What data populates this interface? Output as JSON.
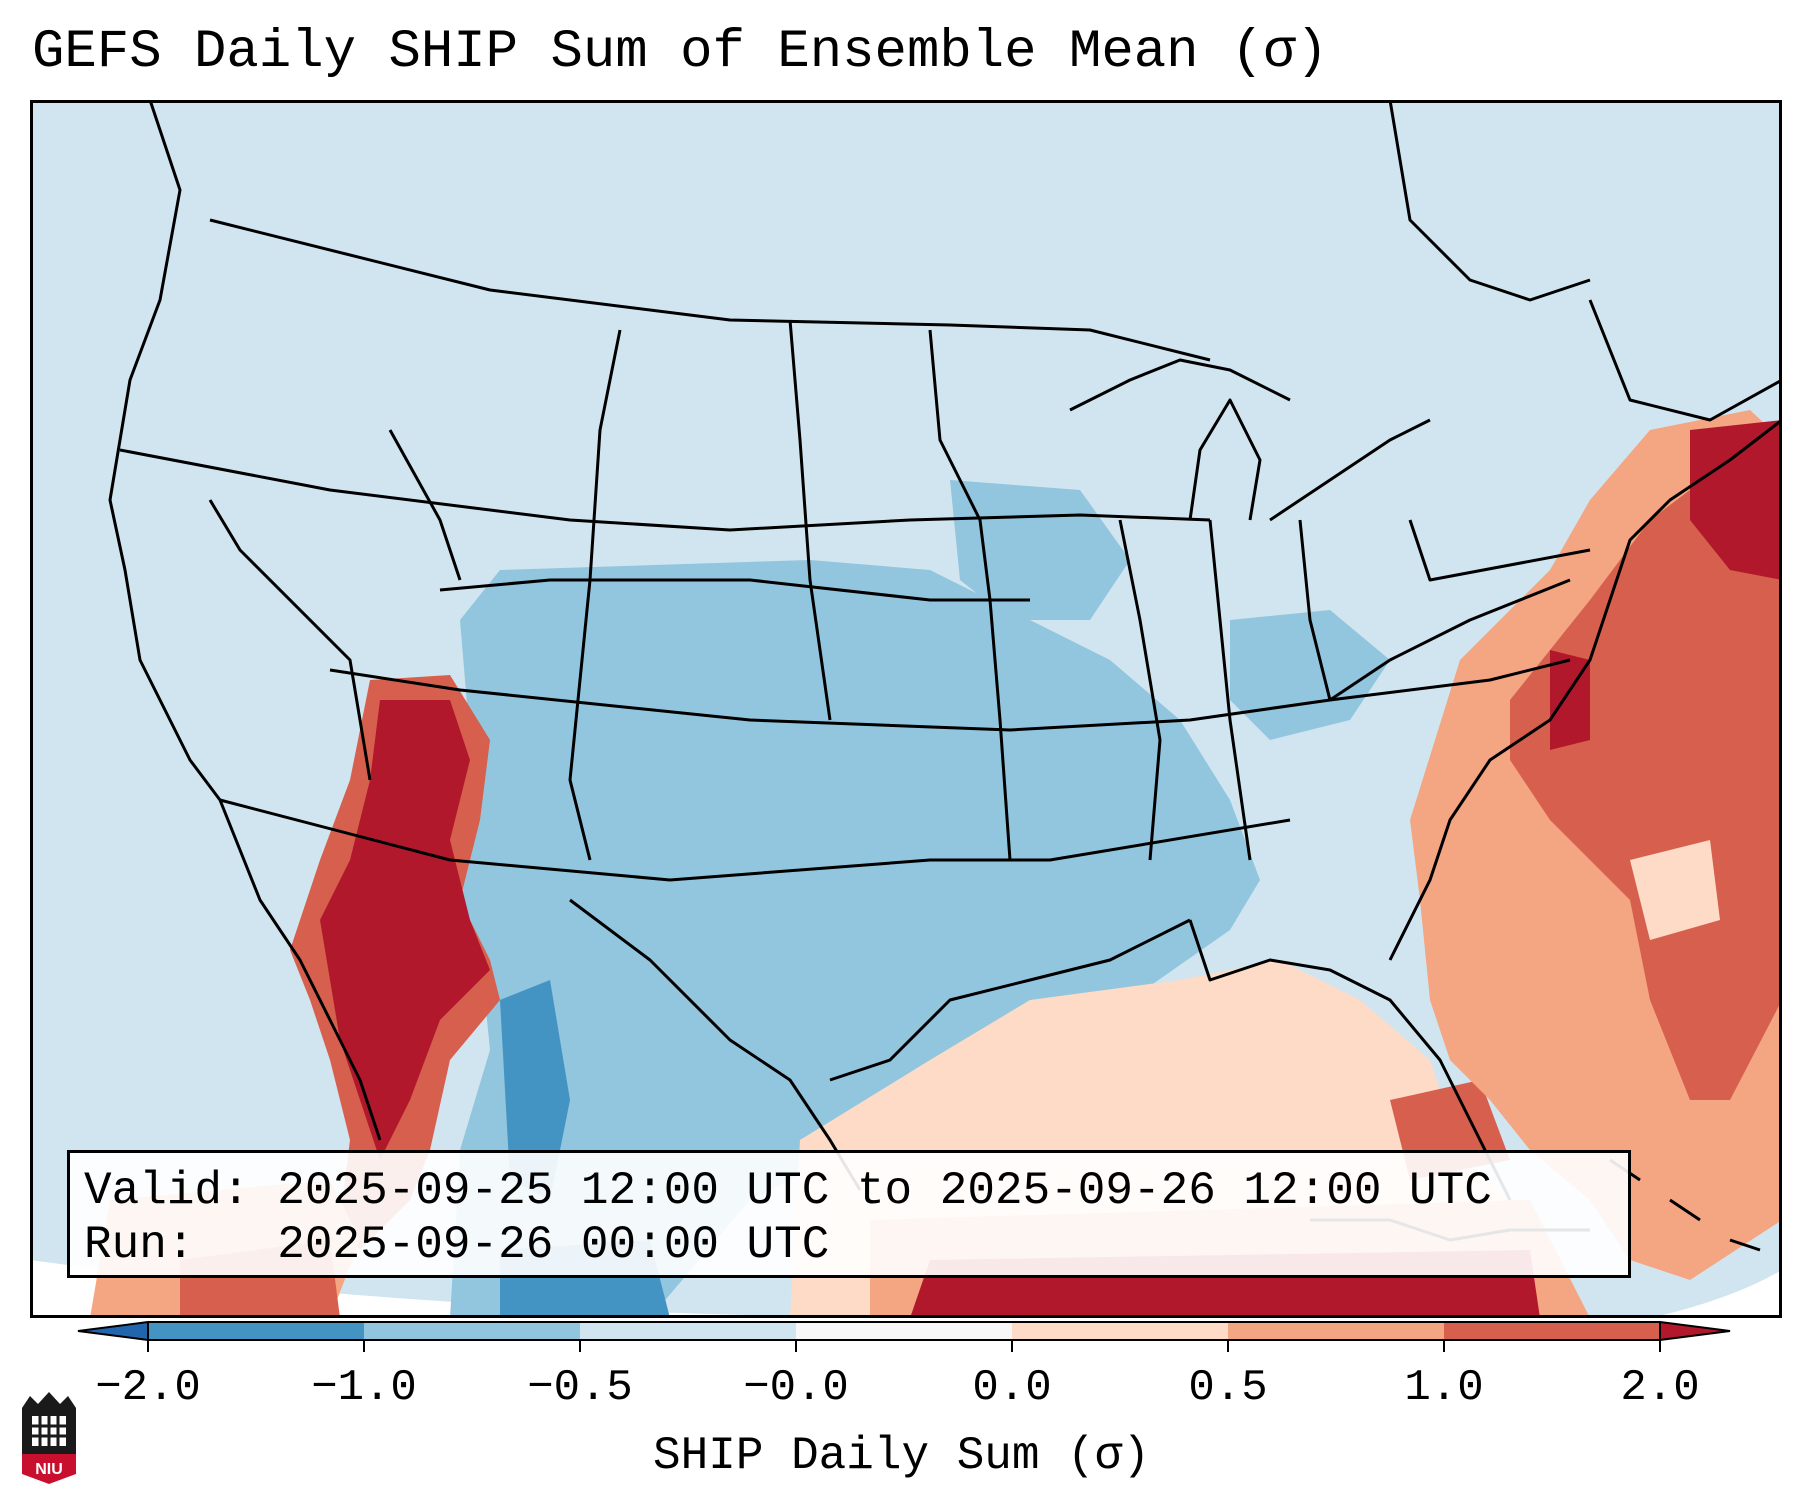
{
  "title": "GEFS Daily SHIP Sum of Ensemble Mean (σ)",
  "info": {
    "valid_label": "Valid:",
    "valid_value": "2025-09-25 12:00 UTC to 2025-09-26 12:00 UTC",
    "run_label": "Run:",
    "run_value": "2025-09-26 00:00 UTC"
  },
  "colorbar": {
    "label": "SHIP Daily Sum (σ)",
    "ticks": [
      "−2.0",
      "−1.0",
      "−0.5",
      "−0.0",
      "0.0",
      "0.5",
      "1.0",
      "2.0"
    ],
    "bins": [
      {
        "range": "< -2.0",
        "color": "#2166ac"
      },
      {
        "range": "-2.0 to -1.0",
        "color": "#4393c3"
      },
      {
        "range": "-1.0 to -0.5",
        "color": "#92c5de"
      },
      {
        "range": "-0.5 to -0.0",
        "color": "#d1e5f0"
      },
      {
        "range": "-0.0 to 0.0",
        "color": "#f7f7f7"
      },
      {
        "range": "0.0 to 0.5",
        "color": "#fddbc7"
      },
      {
        "range": "0.5 to 1.0",
        "color": "#f4a582"
      },
      {
        "range": "1.0 to 2.0",
        "color": "#d6604d"
      },
      {
        "range": "> 2.0",
        "color": "#b2182b"
      }
    ]
  },
  "logo": {
    "text": "NIU",
    "colors": {
      "red": "#c8102e",
      "dark": "#1a1a1a"
    }
  },
  "map_regions": {
    "ocean_background": "#d1e5f0",
    "land_background": "#d1e5f0",
    "southwest_desert": "#b2182b",
    "gulf_coast_warm": "#fddbc7",
    "atlantic_coast": "#d6604d",
    "plains_cool": "#92c5de",
    "bahamas_warm": "#b2182b"
  }
}
